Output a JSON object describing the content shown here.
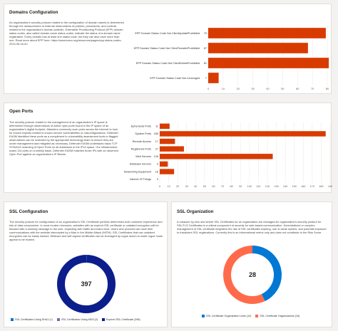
{
  "domains_card": {
    "title": "Domains Configuration",
    "description": "An organization's security posture related to the configuration of domain names is determined through the measurement of external observations of policies, procedures, and controls related to the organization's domain portfolio. Extensible Provisioning Protocol (EPP) domain status codes, also called domain name status codes, indicate the status of a domain name registration. Every domain has at least one status code, but they can also have more than one. Read more about EPP here: https://www.icann.org/resources/pages/epp-status-codes-2014-06-16-en"
  },
  "open_ports_card": {
    "title": "Open Ports",
    "description": "The security posture related to the management of an organization's IP space is determined through observations of active open ports found in the IP space of an organization's digital footprint. Attackers commonly scan ports across the internet to look for known exploits related to known service vulnerabilities or misconfigurations. Defender EASM identifies these ports as a compliment to vulnerability assessment tools to flagged observations can be reviewed by the appropriate technology team to ensure they are under management and mitigated as necessary. Defender EASM undertakes basic TCP SYN/ACK scanning of Open Ports on all addresses in the IPv4 space. Our infrastructure scans 114 ports on a weekly basis. Defender EASM matches those IPs with an observed Open Port against an organization's IP Blocks."
  },
  "ssl_config_card": {
    "title": "SSL Configuration",
    "description": "The security posture for configuration of an organization's SSL Certificate portfolio determines both customer experience and risk of data compromise. In most modern browsers, websites with an expired SSL certificate or outdated encryption will be blocked with a warning message to the user, impacting web traffic and brand trust. Users who proceed can have their communications with the website intercepted by a Man in the Middle Attack (MITM). SSL Certificates that use outdated encryption can be easily hacked. Wildcard and self-signed certificates can be leveraged by rogue actors to make rogue hosts appear to be trusted."
  },
  "ssl_org_card": {
    "title": "SSL Organization",
    "description": "A measure by who and where SSL Certificates for an organization are managed.An organization's security posture for SSL/TLS Certificates is a critical component of security for web-based communication. Decentralized or complex management of SSL certificate heightens the risk of SSL certificates expiring, use of weak ciphers, and potential exposure to fraudulent SSL registrations. Currently this is an informational metric only and does not contribute to the Risk Score."
  },
  "chart_data": [
    {
      "type": "bar",
      "orientation": "horizontal",
      "categories": [
        "EPP Domain Status Code Not ClientUpdateProhibited",
        "EPP Domain Status Code Not ClientTransferProhibited",
        "EPP Domain Status Code Not ClientDeleteProhibited",
        "EPP Domain Status Code Not Leveraged"
      ],
      "values": [
        79,
        67,
        81,
        7
      ],
      "xlim": [
        0,
        80
      ],
      "xticks": [
        0,
        10,
        20,
        30,
        40,
        50,
        60,
        70,
        80
      ],
      "color": "#d83b01",
      "grid": true
    },
    {
      "type": "bar",
      "orientation": "horizontal",
      "categories": [
        "Ephemeral Ports",
        "System Ports",
        "Remote Access",
        "Registered Ports",
        "Web Servers",
        "Database Servers",
        "Networking Equipment",
        "Internet Of Things"
      ],
      "values": [
        11,
        185,
        17,
        27,
        126,
        9,
        16,
        0
      ],
      "xlim": [
        0,
        190
      ],
      "xticks": [
        0,
        10,
        20,
        30,
        40,
        50,
        60,
        70,
        80,
        90,
        100,
        110,
        120,
        130,
        140,
        150,
        160,
        170,
        180,
        190
      ],
      "color": "#d83b01",
      "grid": true
    },
    {
      "type": "pie",
      "donut": true,
      "center_label": "397",
      "slices": [
        {
          "name": "SSL Certificates Using SHA1",
          "value": 1,
          "color": "#0078d4"
        },
        {
          "name": "SSL Certificates Using MD5",
          "value": 0,
          "color": "#8764b8"
        },
        {
          "name": "Expired SSL Certificate",
          "value": 396,
          "color": "#0b1e8c"
        }
      ],
      "legend": [
        "SSL Certificates Using SHA1 (1)",
        "SSL Certificates Using MD5 (0)",
        "Expired SSL Certificate (396)"
      ],
      "legend_position": "bottom"
    },
    {
      "type": "pie",
      "donut": true,
      "center_label": "28",
      "slices": [
        {
          "name": "SSL Certificate Organization Units",
          "value": 12,
          "color": "#0078d4"
        },
        {
          "name": "SSL Certificate Organizations",
          "value": 16,
          "color": "#ff6b4a"
        }
      ],
      "legend": [
        "SSL Certificate Organization Units (12)",
        "SSL Certificate Organizations (16)"
      ],
      "legend_position": "bottom"
    }
  ]
}
